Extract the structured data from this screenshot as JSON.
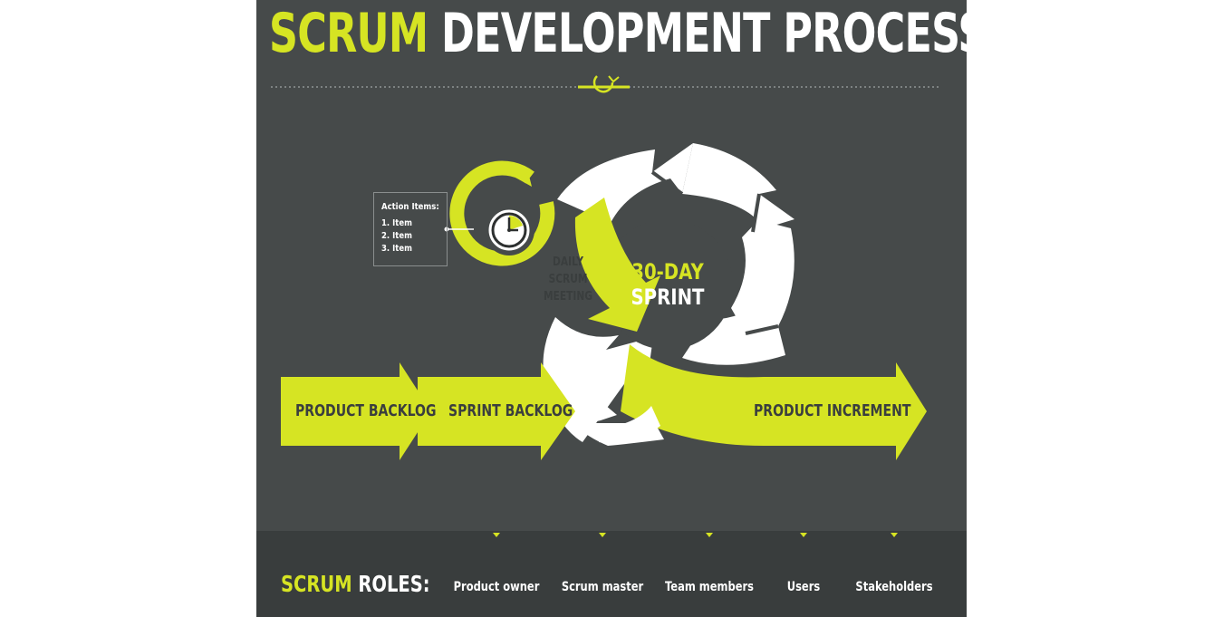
{
  "title": {
    "highlight": "SCRUM",
    "rest": "DEVELOPMENT PROCESS"
  },
  "action_items": {
    "heading": "Action Items:",
    "items": [
      "1. Item",
      "2. Item",
      "3. Item"
    ]
  },
  "cycle": {
    "daily_meeting": [
      "DAILY",
      "SCRUM",
      "MEETING"
    ],
    "sprint_days": "30-DAY",
    "sprint_word": "SPRINT"
  },
  "flow": {
    "product_backlog": "PRODUCT BACKLOG",
    "sprint_backlog": "SPRINT BACKLOG",
    "product_increment": "PRODUCT INCREMENT"
  },
  "roles": {
    "label_highlight": "SCRUM",
    "label_rest": "ROLES:",
    "items": [
      {
        "label": "Product owner",
        "icon": "product-owner-icon"
      },
      {
        "label": "Scrum master",
        "icon": "scrum-master-icon"
      },
      {
        "label": "Team members",
        "icon": "team-members-icon"
      },
      {
        "label": "Users",
        "icon": "users-icon"
      },
      {
        "label": "Stakeholders",
        "icon": "stakeholders-icon"
      }
    ]
  },
  "colors": {
    "background": "#464a4a",
    "accent": "#d6e423",
    "white": "#ffffff",
    "band": "#393d3d",
    "dark_text": "#3a3e3e"
  }
}
